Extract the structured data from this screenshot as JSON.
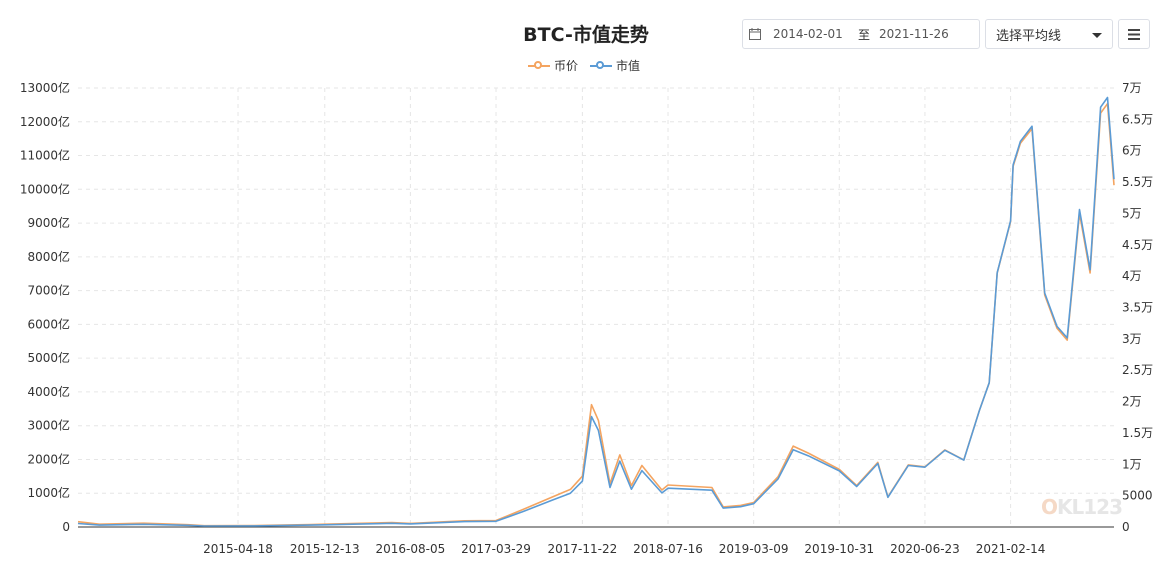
{
  "toolbar": {
    "date_from": "2014-02-01",
    "date_sep": "至",
    "date_to": "2021-11-26",
    "ma_select_label": "选择平均线",
    "calendar_icon": "calendar-icon",
    "menu_icon": "hamburger-menu-icon"
  },
  "watermark": "OKL123",
  "chart_data": {
    "type": "line",
    "title": "BTC-市值走势",
    "legend": "top-center",
    "grid": true,
    "x_ticks": [
      "2015-04-18",
      "2015-12-13",
      "2016-08-05",
      "2017-03-29",
      "2017-11-22",
      "2018-07-16",
      "2019-03-09",
      "2019-10-31",
      "2020-06-23",
      "2021-02-14"
    ],
    "x_range": [
      "2014-02-01",
      "2021-11-26"
    ],
    "y_left": {
      "label": "",
      "ticks": [
        "0",
        "1000亿",
        "2000亿",
        "3000亿",
        "4000亿",
        "5000亿",
        "6000亿",
        "7000亿",
        "8000亿",
        "9000亿",
        "10000亿",
        "11000亿",
        "12000亿",
        "13000亿"
      ],
      "range": [
        0,
        13000
      ]
    },
    "y_right": {
      "label": "",
      "ticks": [
        "0",
        "5000",
        "1万",
        "1.5万",
        "2万",
        "2.5万",
        "3万",
        "3.5万",
        "4万",
        "4.5万",
        "5万",
        "5.5万",
        "6万",
        "6.5万",
        "7万"
      ],
      "range": [
        0,
        70000
      ]
    },
    "series": [
      {
        "name": "币价",
        "color": "#f4a460",
        "axis": "right",
        "unit": "USD",
        "points": [
          [
            "2014-02-01",
            850
          ],
          [
            "2014-04-01",
            450
          ],
          [
            "2014-08-01",
            600
          ],
          [
            "2014-12-01",
            370
          ],
          [
            "2015-01-15",
            210
          ],
          [
            "2015-06-01",
            225
          ],
          [
            "2015-11-05",
            380
          ],
          [
            "2015-12-13",
            440
          ],
          [
            "2016-06-15",
            700
          ],
          [
            "2016-08-05",
            580
          ],
          [
            "2017-01-01",
            990
          ],
          [
            "2017-03-29",
            1040
          ],
          [
            "2017-06-12",
            2800
          ],
          [
            "2017-09-01",
            4800
          ],
          [
            "2017-10-20",
            6000
          ],
          [
            "2017-11-22",
            8100
          ],
          [
            "2017-12-17",
            19500
          ],
          [
            "2018-01-05",
            17000
          ],
          [
            "2018-02-06",
            6900
          ],
          [
            "2018-03-05",
            11500
          ],
          [
            "2018-04-06",
            6600
          ],
          [
            "2018-05-05",
            9800
          ],
          [
            "2018-06-29",
            5900
          ],
          [
            "2018-07-16",
            6700
          ],
          [
            "2018-11-14",
            6300
          ],
          [
            "2018-12-15",
            3200
          ],
          [
            "2019-02-01",
            3450
          ],
          [
            "2019-03-09",
            3900
          ],
          [
            "2019-05-15",
            8000
          ],
          [
            "2019-06-26",
            12900
          ],
          [
            "2019-08-06",
            11800
          ],
          [
            "2019-10-31",
            9200
          ],
          [
            "2019-12-18",
            6600
          ],
          [
            "2020-02-14",
            10300
          ],
          [
            "2020-03-13",
            4800
          ],
          [
            "2020-05-08",
            9900
          ],
          [
            "2020-06-23",
            9600
          ],
          [
            "2020-08-17",
            12300
          ],
          [
            "2020-10-08",
            10700
          ],
          [
            "2020-11-20",
            18600
          ],
          [
            "2020-12-17",
            23000
          ],
          [
            "2021-01-08",
            40500
          ],
          [
            "2021-02-14",
            48700
          ],
          [
            "2021-02-21",
            57500
          ],
          [
            "2021-03-13",
            61200
          ],
          [
            "2021-04-14",
            63500
          ],
          [
            "2021-05-19",
            37000
          ],
          [
            "2021-06-22",
            31700
          ],
          [
            "2021-07-20",
            29800
          ],
          [
            "2021-08-23",
            50000
          ],
          [
            "2021-09-21",
            40500
          ],
          [
            "2021-10-20",
            66000
          ],
          [
            "2021-11-08",
            67500
          ],
          [
            "2021-11-26",
            54500
          ]
        ]
      },
      {
        "name": "市值",
        "color": "#5b9bd5",
        "axis": "left",
        "unit": "亿",
        "points": [
          [
            "2014-02-01",
            105
          ],
          [
            "2014-04-01",
            57
          ],
          [
            "2014-08-01",
            80
          ],
          [
            "2014-12-01",
            50
          ],
          [
            "2015-01-15",
            29
          ],
          [
            "2015-06-01",
            32
          ],
          [
            "2015-11-05",
            56
          ],
          [
            "2015-12-13",
            66
          ],
          [
            "2016-06-15",
            110
          ],
          [
            "2016-08-05",
            91
          ],
          [
            "2017-01-01",
            160
          ],
          [
            "2017-03-29",
            170
          ],
          [
            "2017-06-12",
            460
          ],
          [
            "2017-09-01",
            800
          ],
          [
            "2017-10-20",
            1000
          ],
          [
            "2017-11-22",
            1360
          ],
          [
            "2017-12-17",
            3270
          ],
          [
            "2018-01-05",
            2860
          ],
          [
            "2018-02-06",
            1170
          ],
          [
            "2018-03-05",
            1950
          ],
          [
            "2018-04-06",
            1120
          ],
          [
            "2018-05-05",
            1670
          ],
          [
            "2018-06-29",
            1010
          ],
          [
            "2018-07-16",
            1150
          ],
          [
            "2018-11-14",
            1090
          ],
          [
            "2018-12-15",
            560
          ],
          [
            "2019-02-01",
            600
          ],
          [
            "2019-03-09",
            690
          ],
          [
            "2019-05-15",
            1420
          ],
          [
            "2019-06-26",
            2290
          ],
          [
            "2019-08-06",
            2110
          ],
          [
            "2019-10-31",
            1660
          ],
          [
            "2019-12-18",
            1200
          ],
          [
            "2020-02-14",
            1880
          ],
          [
            "2020-03-13",
            880
          ],
          [
            "2020-05-08",
            1820
          ],
          [
            "2020-06-23",
            1770
          ],
          [
            "2020-08-17",
            2270
          ],
          [
            "2020-10-08",
            1980
          ],
          [
            "2020-11-20",
            3450
          ],
          [
            "2020-12-17",
            4270
          ],
          [
            "2021-01-08",
            7530
          ],
          [
            "2021-02-14",
            9070
          ],
          [
            "2021-02-21",
            10720
          ],
          [
            "2021-03-13",
            11420
          ],
          [
            "2021-04-14",
            11870
          ],
          [
            "2021-05-19",
            6930
          ],
          [
            "2021-06-22",
            5940
          ],
          [
            "2021-07-20",
            5600
          ],
          [
            "2021-08-23",
            9400
          ],
          [
            "2021-09-21",
            7620
          ],
          [
            "2021-10-20",
            12430
          ],
          [
            "2021-11-08",
            12720
          ],
          [
            "2021-11-26",
            10300
          ]
        ]
      }
    ]
  }
}
